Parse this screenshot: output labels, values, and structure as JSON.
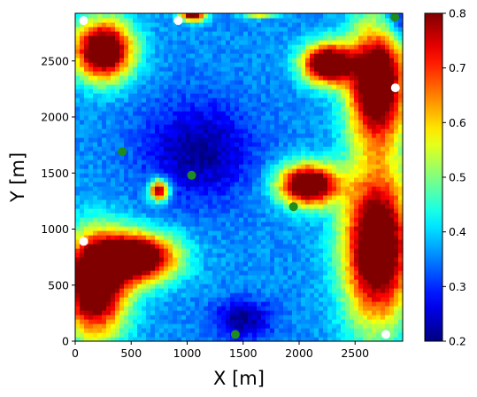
{
  "chart_data": {
    "type": "heatmap",
    "title": "",
    "xlabel": "X [m]",
    "ylabel": "Y [m]",
    "xlim": [
      0,
      2925
    ],
    "ylim": [
      0,
      2925
    ],
    "xticks": [
      0,
      500,
      1000,
      1500,
      2000,
      2500
    ],
    "yticks": [
      0,
      500,
      1000,
      1500,
      2000,
      2500
    ],
    "grid": false,
    "colormap": "jet",
    "colorbar": {
      "vmin": 0.2,
      "vmax": 0.8,
      "ticks": [
        0.2,
        0.3,
        0.4,
        0.5,
        0.6,
        0.7,
        0.8
      ]
    },
    "field_features": [
      {
        "kind": "high",
        "x": 250,
        "y": 2600,
        "rx": 330,
        "ry": 330,
        "value": 0.8
      },
      {
        "kind": "high",
        "x": 2250,
        "y": 2480,
        "rx": 280,
        "ry": 220,
        "value": 0.8
      },
      {
        "kind": "high",
        "x": 2700,
        "y": 2300,
        "rx": 330,
        "ry": 660,
        "value": 0.8
      },
      {
        "kind": "high",
        "x": 2700,
        "y": 850,
        "rx": 380,
        "ry": 850,
        "value": 0.8
      },
      {
        "kind": "high",
        "x": 2080,
        "y": 1400,
        "rx": 330,
        "ry": 230,
        "value": 0.8
      },
      {
        "kind": "high",
        "x": 550,
        "y": 750,
        "rx": 440,
        "ry": 270,
        "value": 0.8
      },
      {
        "kind": "high",
        "x": 170,
        "y": 500,
        "rx": 360,
        "ry": 560,
        "value": 0.8
      },
      {
        "kind": "high",
        "x": 1050,
        "y": 2920,
        "rx": 150,
        "ry": 80,
        "value": 0.72
      },
      {
        "kind": "high",
        "x": 1650,
        "y": 2950,
        "rx": 180,
        "ry": 60,
        "value": 0.75
      },
      {
        "kind": "high",
        "x": 750,
        "y": 1350,
        "rx": 110,
        "ry": 120,
        "value": 0.72
      },
      {
        "kind": "low",
        "x": 1100,
        "y": 1700,
        "rx": 620,
        "ry": 560,
        "value": 0.22
      },
      {
        "kind": "low",
        "x": 1500,
        "y": 200,
        "rx": 340,
        "ry": 220,
        "value": 0.22
      },
      {
        "kind": "low",
        "x": 2900,
        "y": 2850,
        "rx": 230,
        "ry": 230,
        "value": 0.22
      }
    ],
    "series": [
      {
        "color": "#ffffff",
        "points": [
          {
            "x": 75,
            "y": 2860
          },
          {
            "x": 920,
            "y": 2860
          },
          {
            "x": 2860,
            "y": 2260
          },
          {
            "x": 75,
            "y": 890
          },
          {
            "x": 2775,
            "y": 60
          }
        ]
      },
      {
        "color": "#1e8c1e",
        "points": [
          {
            "x": 2855,
            "y": 2890
          },
          {
            "x": 420,
            "y": 1690
          },
          {
            "x": 1040,
            "y": 1480
          },
          {
            "x": 1950,
            "y": 1200
          },
          {
            "x": 1430,
            "y": 60
          }
        ]
      }
    ]
  }
}
